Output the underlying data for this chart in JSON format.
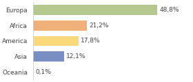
{
  "categories": [
    "Europa",
    "Africa",
    "America",
    "Asia",
    "Oceania"
  ],
  "values": [
    48.8,
    21.2,
    17.8,
    12.1,
    0.1
  ],
  "labels": [
    "48,8%",
    "21,2%",
    "17,8%",
    "12,1%",
    "0,1%"
  ],
  "bar_colors": [
    "#b5c98e",
    "#f0b07a",
    "#f9d97a",
    "#7a8fc1",
    "#e8e8e8"
  ],
  "background_color": "#ffffff",
  "xlim": [
    0,
    62
  ],
  "label_fontsize": 6.5,
  "tick_fontsize": 6.5,
  "bar_height": 0.65,
  "spine_color": "#cccccc"
}
